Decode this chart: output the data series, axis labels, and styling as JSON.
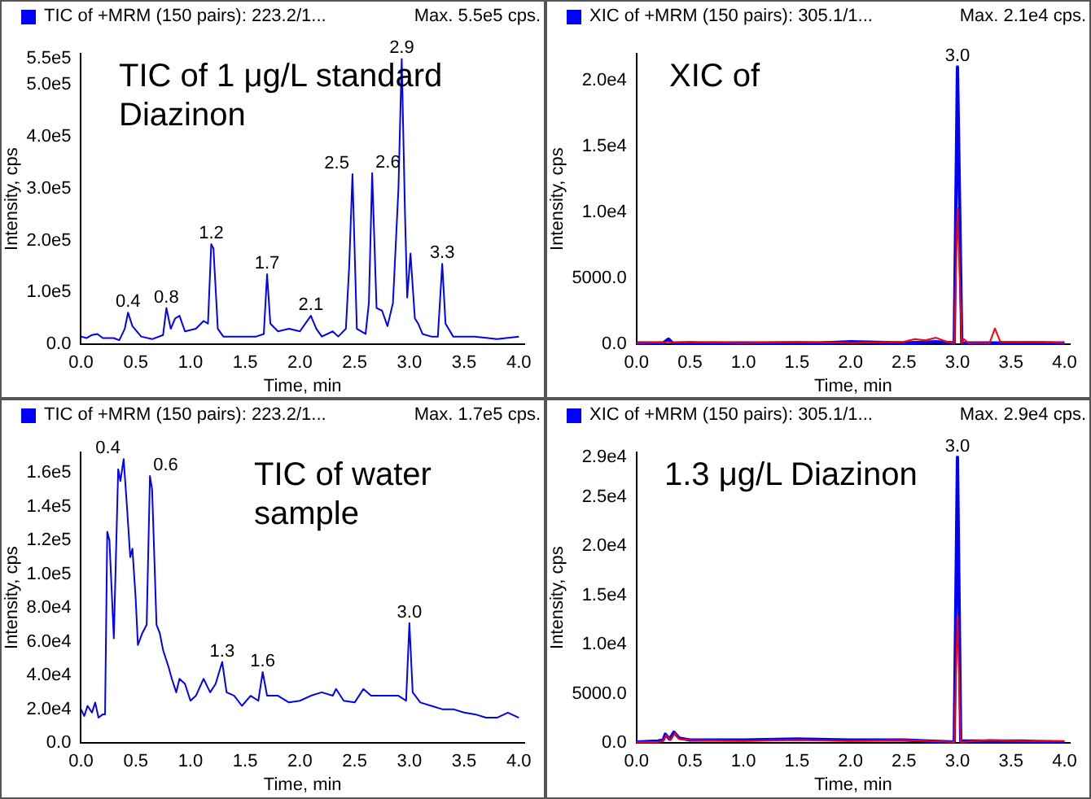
{
  "chart_data": [
    {
      "type": "line",
      "title": "TIC of +MRM (150 pairs): 223.2/1...",
      "subtitle": "Max. 5.5e5 cps.",
      "xlabel": "Time, min",
      "ylabel": "Intensity, cps",
      "xlim": [
        0,
        4.05
      ],
      "ylim": [
        0,
        560000
      ],
      "xticks": [
        {
          "value": 0,
          "label": "0.0"
        },
        0.5,
        {
          "value": 1,
          "label": "1.0"
        },
        1.5,
        {
          "value": 2,
          "label": "2.0"
        },
        2.5,
        {
          "value": 3,
          "label": "3.0"
        },
        3.5,
        {
          "value": 4,
          "label": "4.0"
        }
      ],
      "yticks": [
        {
          "value": 0,
          "label": "0.0"
        },
        {
          "value": 100000,
          "label": "1.0e5"
        },
        {
          "value": 200000,
          "label": "2.0e5"
        },
        {
          "value": 300000,
          "label": "3.0e5"
        },
        {
          "value": 400000,
          "label": "4.0e5"
        },
        {
          "value": 500000,
          "label": "5.0e5"
        },
        {
          "value": 550000,
          "label": "5.5e5"
        }
      ],
      "series": [
        {
          "color": "#0000ff",
          "x": [
            0,
            0.05,
            0.1,
            0.15,
            0.2,
            0.3,
            0.35,
            0.4,
            0.43,
            0.47,
            0.55,
            0.65,
            0.75,
            0.78,
            0.82,
            0.86,
            0.9,
            0.95,
            1.05,
            1.12,
            1.16,
            1.19,
            1.21,
            1.25,
            1.3,
            1.5,
            1.6,
            1.67,
            1.7,
            1.73,
            1.8,
            1.9,
            2.0,
            2.05,
            2.1,
            2.15,
            2.2,
            2.3,
            2.35,
            2.42,
            2.45,
            2.48,
            2.52,
            2.6,
            2.63,
            2.66,
            2.7,
            2.75,
            2.8,
            2.85,
            2.9,
            2.93,
            2.96,
            2.98,
            3.01,
            3.05,
            3.08,
            3.12,
            3.2,
            3.26,
            3.3,
            3.33,
            3.4,
            3.6,
            3.8,
            4.0
          ],
          "values": [
            15000,
            12000,
            18000,
            20000,
            12000,
            12000,
            8000,
            30000,
            61000,
            35000,
            15000,
            10000,
            18000,
            70000,
            30000,
            50000,
            55000,
            25000,
            30000,
            45000,
            40000,
            193000,
            185000,
            30000,
            15000,
            15000,
            15000,
            20000,
            135000,
            40000,
            25000,
            30000,
            25000,
            40000,
            55000,
            30000,
            15000,
            25000,
            15000,
            30000,
            150000,
            328000,
            30000,
            20000,
            80000,
            330000,
            70000,
            65000,
            35000,
            80000,
            300000,
            550000,
            250000,
            90000,
            175000,
            50000,
            40000,
            20000,
            15000,
            15000,
            155000,
            40000,
            15000,
            15000,
            10000,
            15000
          ]
        }
      ],
      "annotations": [
        "TIC of 1 μg/L standard Diazinon",
        {
          "text": "0.4",
          "x": 0.43,
          "y": 61000
        },
        {
          "text": "0.8",
          "x": 0.78,
          "y": 70000
        },
        {
          "text": "1.2",
          "x": 1.19,
          "y": 193000
        },
        {
          "text": "1.7",
          "x": 1.7,
          "y": 135000
        },
        {
          "text": "2.1",
          "x": 2.1,
          "y": 55000
        },
        {
          "text": "2.5",
          "x": 2.48,
          "y": 328000
        },
        {
          "text": "2.6",
          "x": 2.66,
          "y": 330000
        },
        {
          "text": "2.9",
          "x": 2.93,
          "y": 550000
        },
        {
          "text": "3.3",
          "x": 3.3,
          "y": 155000
        }
      ]
    },
    {
      "type": "line",
      "title": "XIC of +MRM (150 pairs): 305.1/1...",
      "subtitle": "Max. 2.1e4 cps.",
      "xlabel": "Time, min",
      "ylabel": "Intensity, cps",
      "xlim": [
        0,
        4.05
      ],
      "ylim": [
        0,
        22000
      ],
      "xticks": [
        {
          "value": 0,
          "label": "0.0"
        },
        0.5,
        {
          "value": 1,
          "label": "1.0"
        },
        1.5,
        {
          "value": 2,
          "label": "2.0"
        },
        2.5,
        {
          "value": 3,
          "label": "3.0"
        },
        3.5,
        {
          "value": 4,
          "label": "4.0"
        }
      ],
      "yticks": [
        {
          "value": 0,
          "label": "0.0"
        },
        {
          "value": 5000,
          "label": "5000.0"
        },
        {
          "value": 10000,
          "label": "1.0e4"
        },
        {
          "value": 15000,
          "label": "1.5e4"
        },
        {
          "value": 20000,
          "label": "2.0e4"
        }
      ],
      "series": [
        {
          "color": "#ff0000",
          "x": [
            0,
            0.5,
            1.0,
            1.5,
            2.0,
            2.5,
            2.6,
            2.7,
            2.8,
            2.9,
            2.97,
            3.0,
            3.04,
            3.06,
            3.1,
            3.3,
            3.35,
            3.4,
            3.6,
            3.8,
            4.0
          ],
          "values": [
            100,
            200,
            100,
            200,
            100,
            200,
            400,
            300,
            500,
            200,
            100,
            10300,
            100,
            400,
            100,
            100,
            1200,
            200,
            200,
            200,
            100
          ]
        },
        {
          "color": "#0000ff",
          "x": [
            0,
            0.25,
            0.3,
            0.35,
            0.7,
            1.2,
            1.7,
            2.0,
            2.5,
            2.8,
            2.97,
            3.0,
            3.04,
            3.1,
            3.5,
            4.0
          ],
          "values": [
            100,
            100,
            400,
            0,
            100,
            100,
            100,
            200,
            100,
            200,
            100,
            21000,
            100,
            100,
            100,
            100
          ]
        }
      ],
      "annotations": [
        "XIC of",
        {
          "text": "3.0",
          "x": 3.0,
          "y": 21000
        }
      ]
    },
    {
      "type": "line",
      "title": "TIC of +MRM (150 pairs): 223.2/1...",
      "subtitle": "Max. 1.7e5 cps.",
      "xlabel": "Time, min",
      "ylabel": "Intensity, cps",
      "xlim": [
        0,
        4.05
      ],
      "ylim": [
        0,
        172000
      ],
      "xticks": [
        {
          "value": 0,
          "label": "0.0"
        },
        0.5,
        {
          "value": 1,
          "label": "1.0"
        },
        1.5,
        {
          "value": 2,
          "label": "2.0"
        },
        2.5,
        {
          "value": 3,
          "label": "3.0"
        },
        3.5,
        {
          "value": 4,
          "label": "4.0"
        }
      ],
      "yticks": [
        {
          "value": 0,
          "label": "0.0"
        },
        {
          "value": 20000,
          "label": "2.0e4"
        },
        {
          "value": 40000,
          "label": "4.0e4"
        },
        {
          "value": 60000,
          "label": "6.0e4"
        },
        {
          "value": 80000,
          "label": "8.0e4"
        },
        {
          "value": 100000,
          "label": "1.0e5"
        },
        {
          "value": 120000,
          "label": "1.2e5"
        },
        {
          "value": 140000,
          "label": "1.4e5"
        },
        {
          "value": 160000,
          "label": "1.6e5"
        }
      ],
      "series": [
        {
          "color": "#0000ff",
          "x": [
            0,
            0.03,
            0.06,
            0.1,
            0.13,
            0.16,
            0.2,
            0.22,
            0.24,
            0.26,
            0.3,
            0.34,
            0.36,
            0.39,
            0.42,
            0.45,
            0.47,
            0.5,
            0.52,
            0.56,
            0.6,
            0.63,
            0.65,
            0.69,
            0.72,
            0.75,
            0.8,
            0.83,
            0.87,
            0.9,
            0.95,
            1.0,
            1.05,
            1.12,
            1.18,
            1.23,
            1.29,
            1.33,
            1.4,
            1.47,
            1.55,
            1.62,
            1.66,
            1.7,
            1.8,
            1.9,
            2.0,
            2.1,
            2.2,
            2.3,
            2.33,
            2.4,
            2.5,
            2.58,
            2.65,
            2.75,
            2.9,
            2.97,
            3.0,
            3.03,
            3.1,
            3.2,
            3.3,
            3.4,
            3.5,
            3.6,
            3.7,
            3.8,
            3.9,
            4.0
          ],
          "values": [
            20000,
            16000,
            22000,
            18000,
            24000,
            15000,
            17000,
            17000,
            125000,
            120000,
            62000,
            162000,
            155000,
            168000,
            140000,
            110000,
            115000,
            85000,
            58000,
            65000,
            70000,
            158000,
            150000,
            70000,
            65000,
            55000,
            45000,
            38000,
            30000,
            38000,
            35000,
            25000,
            28000,
            38000,
            30000,
            35000,
            48000,
            30000,
            28000,
            22000,
            28000,
            25000,
            42000,
            28000,
            28000,
            24000,
            25000,
            28000,
            30000,
            28000,
            32000,
            25000,
            24000,
            32000,
            28000,
            28000,
            28000,
            25000,
            71000,
            30000,
            24000,
            22000,
            20000,
            20000,
            18000,
            17000,
            15000,
            15000,
            18000,
            15000
          ]
        }
      ],
      "annotations": [
        "TIC of water sample",
        {
          "text": "0.4",
          "x": 0.39,
          "y": 168000
        },
        {
          "text": "0.6",
          "x": 0.63,
          "y": 158000
        },
        {
          "text": "1.3",
          "x": 1.29,
          "y": 48000
        },
        {
          "text": "1.6",
          "x": 1.66,
          "y": 42000
        },
        {
          "text": "3.0",
          "x": 3.0,
          "y": 71000
        }
      ]
    },
    {
      "type": "line",
      "title": "XIC of +MRM (150 pairs): 305.1/1...",
      "subtitle": "Max. 2.9e4 cps.",
      "xlabel": "Time, min",
      "ylabel": "Intensity, cps",
      "xlim": [
        0,
        4.05
      ],
      "ylim": [
        0,
        29500
      ],
      "xticks": [
        {
          "value": 0,
          "label": "0.0"
        },
        0.5,
        {
          "value": 1,
          "label": "1.0"
        },
        1.5,
        {
          "value": 2,
          "label": "2.0"
        },
        2.5,
        {
          "value": 3,
          "label": "3.0"
        },
        3.5,
        {
          "value": 4,
          "label": "4.0"
        }
      ],
      "yticks": [
        {
          "value": 0,
          "label": "0.0"
        },
        {
          "value": 5000,
          "label": "5000.0"
        },
        {
          "value": 10000,
          "label": "1.0e4"
        },
        {
          "value": 15000,
          "label": "1.5e4"
        },
        {
          "value": 20000,
          "label": "2.0e4"
        },
        {
          "value": 25000,
          "label": "2.5e4"
        },
        {
          "value": 29000,
          "label": "2.9e4"
        }
      ],
      "series": [
        {
          "color": "#ff0000",
          "x": [
            0,
            0.2,
            0.25,
            0.28,
            0.32,
            0.36,
            0.4,
            0.5,
            1.0,
            1.5,
            2.0,
            2.5,
            2.97,
            3.0,
            3.03,
            3.3,
            3.6,
            4.0
          ],
          "values": [
            100,
            100,
            200,
            800,
            300,
            1000,
            400,
            300,
            200,
            300,
            200,
            300,
            100,
            12900,
            100,
            300,
            200,
            200
          ]
        },
        {
          "color": "#0000ff",
          "x": [
            0,
            0.2,
            0.25,
            0.27,
            0.31,
            0.35,
            0.4,
            0.5,
            1.0,
            1.5,
            2.0,
            2.5,
            2.97,
            3.0,
            3.03,
            3.3,
            3.6,
            4.0
          ],
          "values": [
            100,
            200,
            300,
            900,
            400,
            1100,
            500,
            300,
            300,
            400,
            300,
            300,
            100,
            29000,
            200,
            200,
            200,
            100
          ]
        }
      ],
      "annotations": [
        "1.3 μg/L Diazinon",
        {
          "text": "3.0",
          "x": 3.0,
          "y": 29000
        }
      ]
    }
  ]
}
